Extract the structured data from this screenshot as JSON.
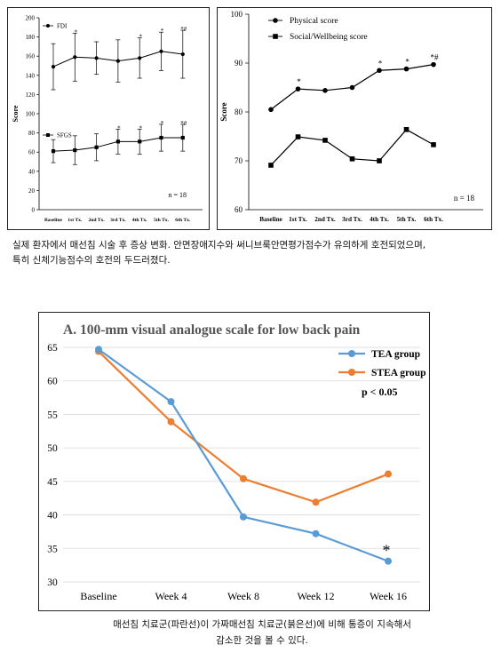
{
  "chart_data": [
    {
      "type": "line",
      "title": "",
      "ylabel": "Score",
      "ylim": [
        0,
        200
      ],
      "yticks": [
        0,
        20,
        40,
        60,
        80,
        100,
        120,
        140,
        160,
        180,
        200
      ],
      "categories": [
        "Baseline",
        "1st Tx.",
        "2nd Tx.",
        "3rd Tx.",
        "4th Tx.",
        "5th Tx.",
        "6th Tx."
      ],
      "series": [
        {
          "name": "FDI",
          "marker": "circle",
          "values": [
            149,
            159,
            158,
            155,
            158,
            165,
            162
          ],
          "error": [
            24,
            25,
            17,
            22,
            21,
            20,
            25
          ],
          "annotations": [
            "",
            "*",
            "",
            "",
            "*",
            "*",
            "*#"
          ]
        },
        {
          "name": "SFGS",
          "marker": "square",
          "values": [
            61,
            62,
            65,
            71,
            71,
            75,
            75
          ],
          "error": [
            12,
            15,
            14,
            13,
            13,
            14,
            14
          ],
          "annotations": [
            "",
            "",
            "",
            "*",
            "*",
            "*",
            "*#"
          ]
        }
      ],
      "note": "n = 18",
      "legend_position": "inline"
    },
    {
      "type": "line",
      "title": "",
      "ylabel": "Score",
      "ylim": [
        60,
        100
      ],
      "yticks": [
        60,
        70,
        80,
        90,
        100
      ],
      "categories": [
        "Baseline",
        "1st Tx.",
        "2nd Tx.",
        "3rd Tx.",
        "4th Tx.",
        "5th Tx.",
        "6th Tx."
      ],
      "series": [
        {
          "name": "Physical score",
          "marker": "circle",
          "values": [
            80.5,
            84.7,
            84.4,
            85.0,
            88.5,
            88.8,
            89.7
          ],
          "annotations": [
            "",
            "*",
            "",
            "",
            "*",
            "*",
            "*#"
          ]
        },
        {
          "name": "Social/Wellbeing score",
          "marker": "square",
          "values": [
            69.1,
            74.9,
            74.2,
            70.4,
            70.0,
            76.4,
            73.3
          ],
          "annotations": [
            "",
            "",
            "",
            "",
            "",
            "",
            ""
          ]
        }
      ],
      "note": "n = 18",
      "legend_position": "top-left"
    },
    {
      "type": "line",
      "title": "A. 100-mm visual analogue scale for low back pain",
      "ylim": [
        30,
        65
      ],
      "yticks": [
        30,
        35,
        40,
        45,
        50,
        55,
        60,
        65
      ],
      "categories": [
        "Baseline",
        "Week 4",
        "Week 8",
        "Week 12",
        "Week 16"
      ],
      "series": [
        {
          "name": "TEA group",
          "color": "#5b9bd5",
          "values": [
            64.7,
            56.9,
            39.7,
            37.2,
            33.1
          ]
        },
        {
          "name": "STEA group",
          "color": "#ed7d31",
          "values": [
            64.4,
            53.9,
            45.4,
            41.9,
            46.1
          ]
        }
      ],
      "significance": "p < 0.05",
      "annotations": [
        "",
        "",
        "",
        "",
        "*"
      ],
      "grid": true,
      "legend_position": "top-right"
    }
  ],
  "captions": {
    "caption1_line1": "실제 환자에서 매선침 시술 후 증상 변화. 안면장애지수와 써니브룩안면평가점수가 유의하게 호전되었으며,",
    "caption1_line2": "특히 신체기능점수의 호전의 두드러졌다.",
    "caption2_line1": "매선침 치료군(파란선)이 가짜매선침 치료군(붉은선)에 비해 통증이 지속해서",
    "caption2_line2": "감소한 것을 볼 수 있다."
  }
}
